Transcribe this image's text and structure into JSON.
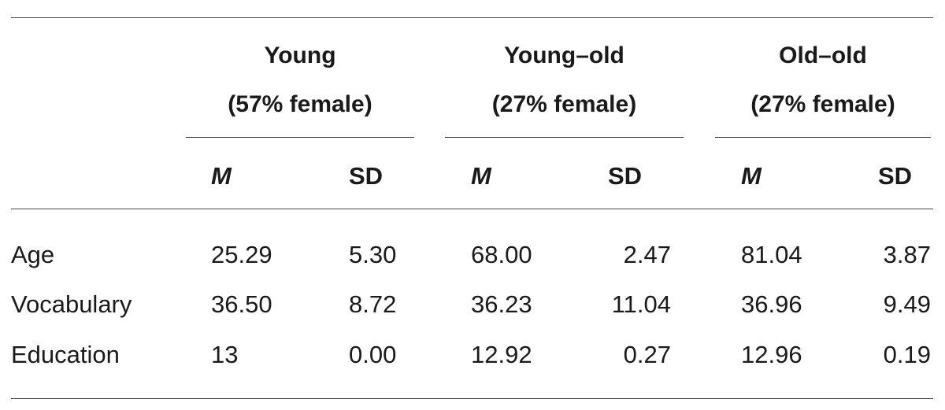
{
  "table": {
    "groups": [
      {
        "name": "Young",
        "detail": "(57% female)"
      },
      {
        "name": "Young–old",
        "detail": "(27% female)"
      },
      {
        "name": "Old–old",
        "detail": "(27% female)"
      }
    ],
    "subheaders": {
      "mean": "M",
      "sd": "SD"
    },
    "rows": [
      {
        "label": "Age",
        "values": [
          "25.29",
          "5.30",
          "68.00",
          "2.47",
          "81.04",
          "3.87"
        ]
      },
      {
        "label": "Vocabulary",
        "values": [
          "36.50",
          "8.72",
          "36.23",
          "11.04",
          "36.96",
          "9.49"
        ]
      },
      {
        "label": "Education",
        "values": [
          "13",
          "0.00",
          "12.92",
          "0.27",
          "12.96",
          "0.19"
        ]
      }
    ]
  }
}
